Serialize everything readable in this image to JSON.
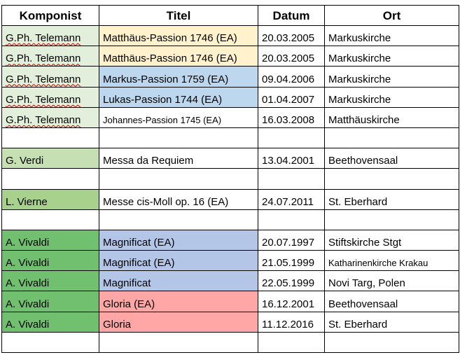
{
  "headers": [
    "Komponist",
    "Titel",
    "Datum",
    "Ort"
  ],
  "rows": [
    {
      "komponist": "G.Ph. Telemann",
      "titel": "Matthäus-Passion 1746 (EA)",
      "datum": "20.03.2005",
      "ort": "Markuskirche"
    },
    {
      "komponist": "G.Ph. Telemann",
      "titel": "Matthäus-Passion 1746 (EA)",
      "datum": "20.03.2005",
      "ort": "Markuskirche"
    },
    {
      "komponist": "G.Ph. Telemann",
      "titel": "Markus-Passion 1759 (EA)",
      "datum": "09.04.2006",
      "ort": "Markuskirche"
    },
    {
      "komponist": "G.Ph. Telemann",
      "titel": "Lukas-Passion 1744 (EA)",
      "datum": "01.04.2007",
      "ort": "Markuskirche"
    },
    {
      "komponist": "G.Ph. Telemann",
      "titel": "Johannes-Passion 1745 (EA)",
      "datum": "16.03.2008",
      "ort": "Matthäuskirche"
    },
    {
      "komponist": "",
      "titel": "",
      "datum": "",
      "ort": ""
    },
    {
      "komponist": "G. Verdi",
      "titel": "Messa da Requiem",
      "datum": "13.04.2001",
      "ort": "Beethovensaal"
    },
    {
      "komponist": "",
      "titel": "",
      "datum": "",
      "ort": ""
    },
    {
      "komponist": "L. Vierne",
      "titel": "Messe cis-Moll op. 16 (EA)",
      "datum": "24.07.2011",
      "ort": "St. Eberhard"
    },
    {
      "komponist": "",
      "titel": "",
      "datum": "",
      "ort": ""
    },
    {
      "komponist": "A. Vivaldi",
      "titel": "Magnificat (EA)",
      "datum": "20.07.1997",
      "ort": "Stiftskirche Stgt"
    },
    {
      "komponist": "A. Vivaldi",
      "titel": "Magnificat (EA)",
      "datum": "21.05.1999",
      "ort": "Katharinenkirche Krakau"
    },
    {
      "komponist": "A. Vivaldi",
      "titel": "Magnificat",
      "datum": "22.05.1999",
      "ort": "Novi Targ, Polen"
    },
    {
      "komponist": "A. Vivaldi",
      "titel": "Gloria (EA)",
      "datum": "16.12.2001",
      "ort": "Beethovensaal"
    },
    {
      "komponist": "A. Vivaldi",
      "titel": "Gloria",
      "datum": "11.12.2016",
      "ort": "St. Eberhard"
    },
    {
      "komponist": "",
      "titel": "",
      "datum": "",
      "ort": ""
    }
  ],
  "colors": {
    "telemann": "#e2efda",
    "verdi": "#c6e0b4",
    "vierne": "#a9d18e",
    "vivaldi": "#70c070",
    "matthaeus": "#fff2cc",
    "passion_blue": "#bdd7ee",
    "magnificat": "#b4c6e7",
    "gloria": "#ffa7a7",
    "white": "#ffffff"
  }
}
